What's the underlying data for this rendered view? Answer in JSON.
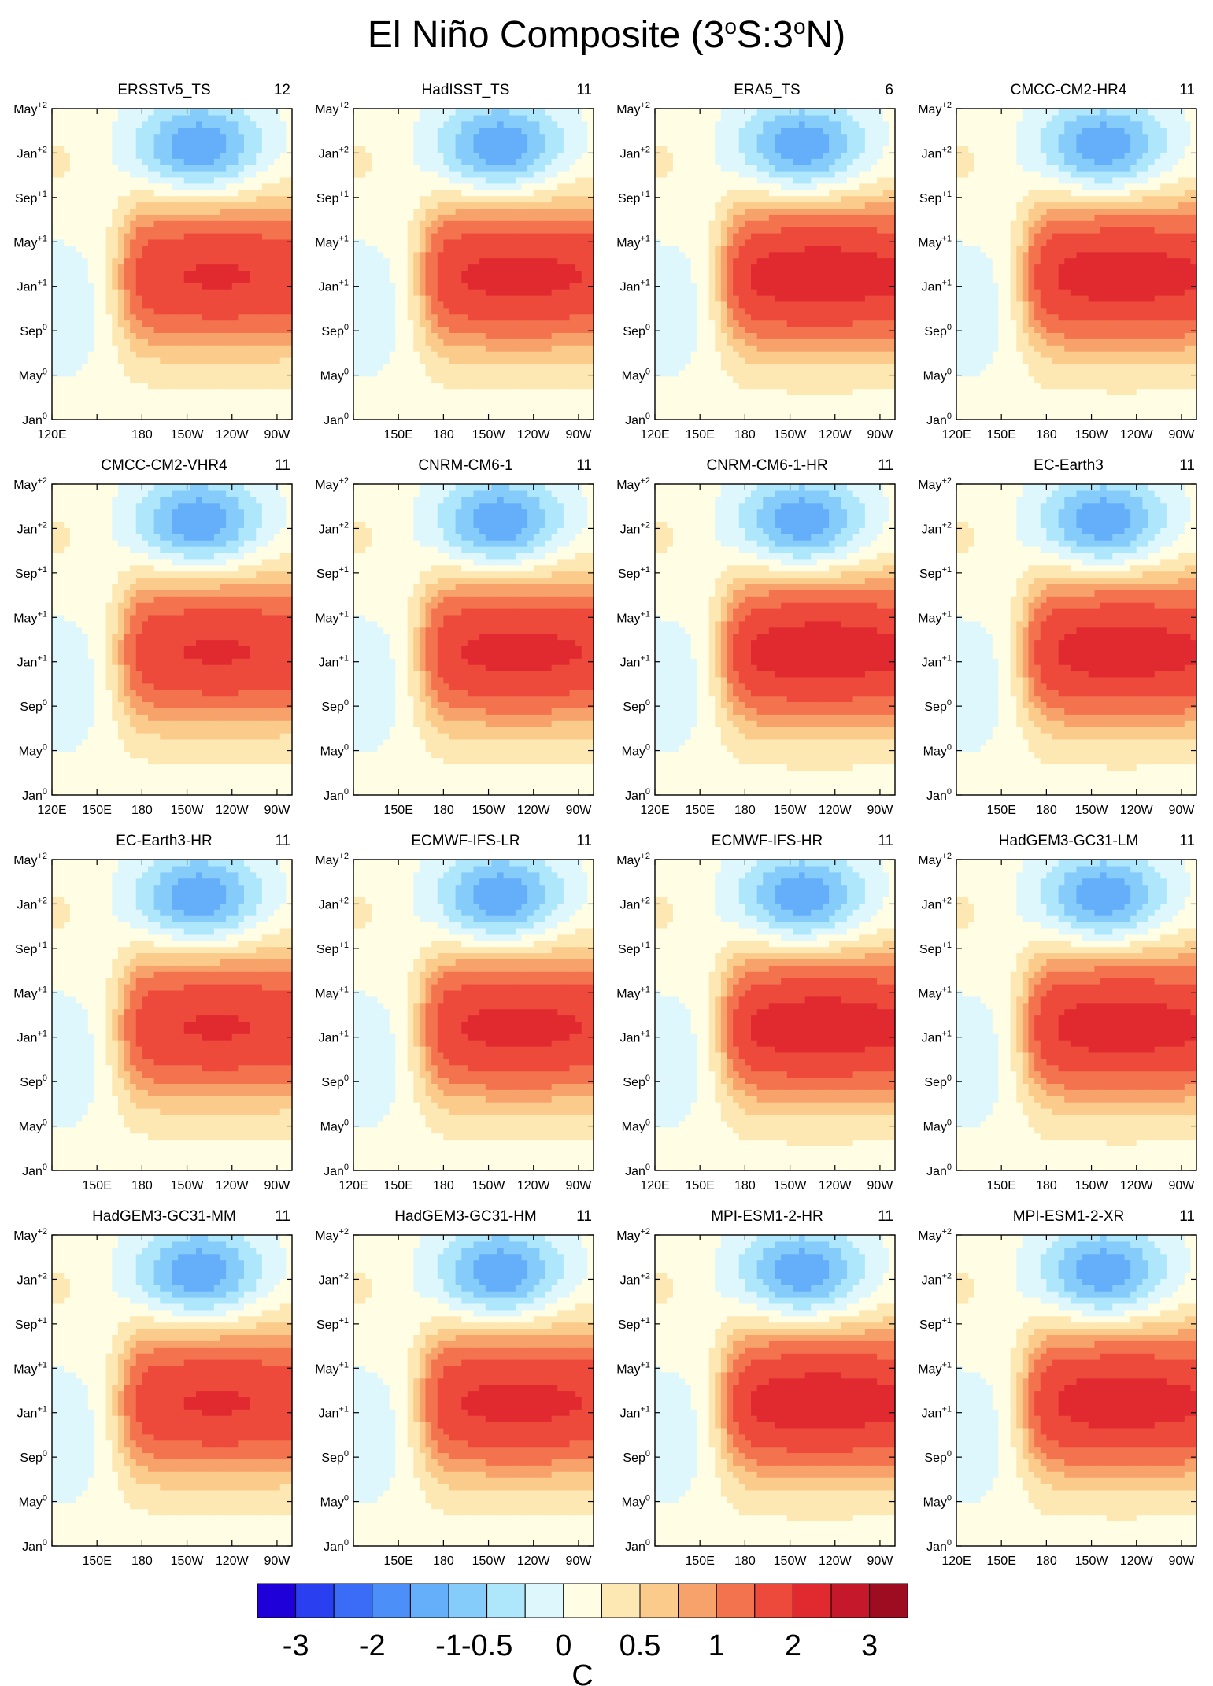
{
  "title": {
    "prefix": "El Niño Composite (3",
    "sup1": "o",
    "mid": "S:3",
    "sup2": "o",
    "suffix": "N)"
  },
  "chart_data": {
    "type": "heatmap",
    "description_units": "SST anomaly, C",
    "x_axis": {
      "ticks": [
        "120E",
        "150E",
        "180",
        "150W",
        "120W",
        "90W"
      ],
      "range_deg_east": [
        120,
        280
      ]
    },
    "y_axis": {
      "ticks": [
        {
          "base": "Jan",
          "sup": "0"
        },
        {
          "base": "May",
          "sup": "0"
        },
        {
          "base": "Sep",
          "sup": "0"
        },
        {
          "base": "Jan",
          "sup": "+1"
        },
        {
          "base": "May",
          "sup": "+1"
        },
        {
          "base": "Sep",
          "sup": "+1"
        },
        {
          "base": "Jan",
          "sup": "+2"
        },
        {
          "base": "May",
          "sup": "+2"
        }
      ]
    },
    "colorbar": {
      "colors": [
        "#1f00d9",
        "#2a3ff0",
        "#3b6cf7",
        "#4d8ff8",
        "#64aefa",
        "#86ccfb",
        "#aee6fc",
        "#def7fd",
        "#fffde4",
        "#fde8b4",
        "#fbcb8c",
        "#f8a26b",
        "#f4734f",
        "#ee4a3c",
        "#e02a30",
        "#c5182a",
        "#9e0c22"
      ],
      "labels": [
        "-3",
        "-2",
        "-1",
        "-0.5",
        "0",
        "0.5",
        "1",
        "2",
        "3"
      ],
      "unit": "C"
    },
    "panels": [
      {
        "name": "ERSSTv5_TS",
        "count": "12"
      },
      {
        "name": "HadISST_TS",
        "count": "11"
      },
      {
        "name": "ERA5_TS",
        "count": "6"
      },
      {
        "name": "CMCC-CM2-HR4",
        "count": "11"
      },
      {
        "name": "CMCC-CM2-VHR4",
        "count": "11"
      },
      {
        "name": "CNRM-CM6-1",
        "count": "11"
      },
      {
        "name": "CNRM-CM6-1-HR",
        "count": "11"
      },
      {
        "name": "EC-Earth3",
        "count": "11"
      },
      {
        "name": "EC-Earth3-HR",
        "count": "11"
      },
      {
        "name": "ECMWF-IFS-LR",
        "count": "11"
      },
      {
        "name": "ECMWF-IFS-HR",
        "count": "11"
      },
      {
        "name": "HadGEM3-GC31-LM",
        "count": "11"
      },
      {
        "name": "HadGEM3-GC31-MM",
        "count": "11"
      },
      {
        "name": "HadGEM3-GC31-HM",
        "count": "11"
      },
      {
        "name": "MPI-ESM1-2-HR",
        "count": "11"
      },
      {
        "name": "MPI-ESM1-2-XR",
        "count": "11"
      }
    ],
    "x_tick_visibility": [
      [
        1,
        0,
        1,
        1,
        1,
        1
      ],
      [
        0,
        1,
        1,
        1,
        1,
        1
      ],
      [
        1,
        1,
        1,
        1,
        1,
        1
      ],
      [
        1,
        1,
        1,
        1,
        1,
        1
      ],
      [
        1,
        1,
        1,
        1,
        1,
        1
      ],
      [
        0,
        1,
        1,
        1,
        1,
        1
      ],
      [
        1,
        1,
        1,
        1,
        1,
        1
      ],
      [
        0,
        1,
        1,
        1,
        1,
        1
      ],
      [
        0,
        1,
        1,
        1,
        1,
        1
      ],
      [
        1,
        1,
        1,
        1,
        1,
        1
      ],
      [
        1,
        1,
        1,
        1,
        1,
        1
      ],
      [
        0,
        1,
        1,
        1,
        1,
        1
      ],
      [
        0,
        1,
        1,
        1,
        1,
        1
      ],
      [
        0,
        1,
        1,
        1,
        1,
        1
      ],
      [
        0,
        1,
        1,
        1,
        1,
        1
      ],
      [
        1,
        1,
        1,
        1,
        1,
        1
      ]
    ]
  }
}
